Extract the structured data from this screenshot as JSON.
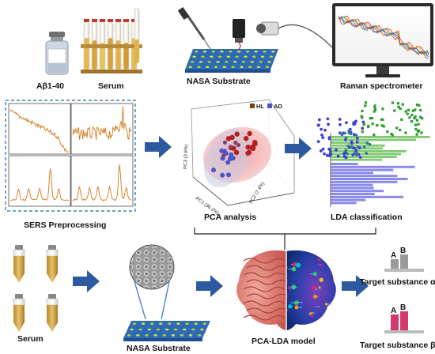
{
  "top_row": {
    "vial_label": "Aβ1-40",
    "serum_label": "Serum",
    "nasa_label": "NASA Substrate",
    "raman_label": "Raman spectrometer"
  },
  "middle_row": {
    "sers_label": "SERS Preprocessing",
    "pca_label": "PCA analysis",
    "lda_label": "LDA classification",
    "pca_legend": [
      "HL",
      "AD"
    ],
    "pca_axes": {
      "x": "PC1 (36.2%)",
      "y": "PC2 (7.4%)",
      "z": "PC3 (3.6%)"
    }
  },
  "bottom_row": {
    "serum_label": "Serum",
    "nasa_label": "NASA Substrate",
    "model_label": "PCA-LDA model",
    "target_alpha_label": "Target substance α",
    "target_beta_label": "Target substance β",
    "bar_a": "A",
    "bar_b": "B"
  },
  "colors": {
    "arrow": "#2c5aa0",
    "hl": "#c0392b",
    "ad": "#4a55c8",
    "lda_green": "#2e9d2e",
    "lda_blue": "#3f3fd6",
    "spectrum": "#d4781c",
    "substrate": "#2f6ab7",
    "bar_gray": "#9a9a9a",
    "bar_pink": "#d1386f"
  }
}
